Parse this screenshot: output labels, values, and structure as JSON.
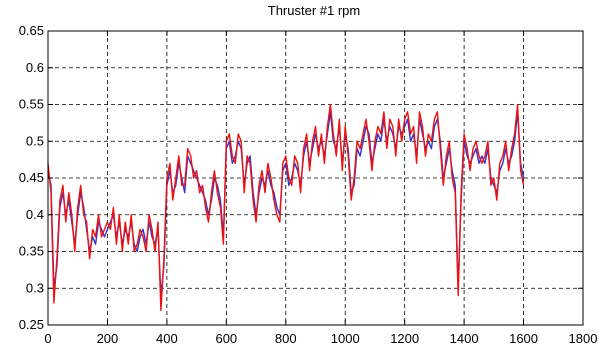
{
  "chart_data": {
    "type": "line",
    "title": "Thruster #1 rpm",
    "xlabel": "",
    "ylabel": "",
    "xlim": [
      0,
      1800
    ],
    "ylim": [
      0.25,
      0.65
    ],
    "x_ticks": [
      0,
      200,
      400,
      600,
      800,
      1000,
      1200,
      1400,
      1600,
      1800
    ],
    "y_ticks": [
      0.25,
      0.3,
      0.35,
      0.4,
      0.45,
      0.5,
      0.55,
      0.6,
      0.65
    ],
    "x_tick_labels": [
      "0",
      "200",
      "400",
      "600",
      "800",
      "1000",
      "1200",
      "1400",
      "1600",
      "1800"
    ],
    "y_tick_labels": [
      "0.25",
      "0.3",
      "0.35",
      "0.4",
      "0.45",
      "0.5",
      "0.55",
      "0.6",
      "0.65"
    ],
    "grid": true,
    "grid_style": "dashed",
    "series": [
      {
        "color": "#3333cc",
        "x": [
          0,
          10,
          20,
          30,
          40,
          50,
          60,
          70,
          80,
          90,
          100,
          110,
          120,
          130,
          140,
          150,
          160,
          170,
          180,
          190,
          200,
          210,
          220,
          230,
          240,
          250,
          260,
          270,
          280,
          290,
          300,
          310,
          320,
          330,
          340,
          350,
          360,
          370,
          380,
          390,
          400,
          410,
          420,
          430,
          440,
          450,
          460,
          470,
          480,
          490,
          500,
          510,
          520,
          530,
          540,
          550,
          560,
          570,
          580,
          590,
          600,
          610,
          620,
          630,
          640,
          650,
          660,
          670,
          680,
          690,
          700,
          710,
          720,
          730,
          740,
          750,
          760,
          770,
          780,
          790,
          800,
          810,
          820,
          830,
          840,
          850,
          860,
          870,
          880,
          890,
          900,
          910,
          920,
          930,
          940,
          950,
          960,
          970,
          980,
          990,
          1000,
          1010,
          1020,
          1030,
          1040,
          1050,
          1060,
          1070,
          1080,
          1090,
          1100,
          1110,
          1120,
          1130,
          1140,
          1150,
          1160,
          1170,
          1180,
          1190,
          1200,
          1210,
          1220,
          1230,
          1240,
          1250,
          1260,
          1270,
          1280,
          1290,
          1300,
          1310,
          1320,
          1330,
          1340,
          1350,
          1360,
          1370,
          1380,
          1390,
          1400,
          1410,
          1420,
          1430,
          1440,
          1450,
          1460,
          1470,
          1480,
          1490,
          1500,
          1510,
          1520,
          1530,
          1540,
          1550,
          1560,
          1570,
          1580,
          1590,
          1600
        ],
        "y": [
          0.46,
          0.44,
          0.3,
          0.33,
          0.41,
          0.43,
          0.4,
          0.42,
          0.39,
          0.36,
          0.4,
          0.43,
          0.41,
          0.38,
          0.35,
          0.37,
          0.36,
          0.39,
          0.38,
          0.37,
          0.38,
          0.39,
          0.4,
          0.37,
          0.39,
          0.36,
          0.38,
          0.37,
          0.39,
          0.36,
          0.35,
          0.37,
          0.38,
          0.36,
          0.39,
          0.37,
          0.36,
          0.38,
          0.29,
          0.33,
          0.44,
          0.46,
          0.43,
          0.44,
          0.47,
          0.45,
          0.43,
          0.48,
          0.47,
          0.46,
          0.45,
          0.44,
          0.43,
          0.42,
          0.4,
          0.42,
          0.45,
          0.44,
          0.42,
          0.37,
          0.49,
          0.5,
          0.47,
          0.48,
          0.5,
          0.49,
          0.44,
          0.47,
          0.48,
          0.43,
          0.4,
          0.43,
          0.45,
          0.44,
          0.46,
          0.44,
          0.43,
          0.41,
          0.4,
          0.46,
          0.47,
          0.44,
          0.45,
          0.47,
          0.46,
          0.44,
          0.48,
          0.5,
          0.47,
          0.49,
          0.51,
          0.49,
          0.5,
          0.48,
          0.51,
          0.54,
          0.5,
          0.49,
          0.52,
          0.47,
          0.51,
          0.49,
          0.43,
          0.44,
          0.49,
          0.48,
          0.5,
          0.52,
          0.51,
          0.47,
          0.49,
          0.51,
          0.5,
          0.53,
          0.5,
          0.52,
          0.51,
          0.49,
          0.52,
          0.51,
          0.52,
          0.53,
          0.5,
          0.51,
          0.48,
          0.53,
          0.51,
          0.49,
          0.5,
          0.49,
          0.52,
          0.53,
          0.5,
          0.45,
          0.47,
          0.49,
          0.46,
          0.44,
          0.3,
          0.42,
          0.5,
          0.48,
          0.47,
          0.48,
          0.49,
          0.47,
          0.48,
          0.47,
          0.49,
          0.45,
          0.44,
          0.43,
          0.46,
          0.47,
          0.49,
          0.47,
          0.48,
          0.5,
          0.54,
          0.47,
          0.45
        ]
      },
      {
        "color": "#ee1111",
        "x": [
          0,
          10,
          20,
          30,
          40,
          50,
          60,
          70,
          80,
          90,
          100,
          110,
          120,
          130,
          140,
          150,
          160,
          170,
          180,
          190,
          200,
          210,
          220,
          230,
          240,
          250,
          260,
          270,
          280,
          290,
          300,
          310,
          320,
          330,
          340,
          350,
          360,
          370,
          380,
          390,
          400,
          410,
          420,
          430,
          440,
          450,
          460,
          470,
          480,
          490,
          500,
          510,
          520,
          530,
          540,
          550,
          560,
          570,
          580,
          590,
          600,
          610,
          620,
          630,
          640,
          650,
          660,
          670,
          680,
          690,
          700,
          710,
          720,
          730,
          740,
          750,
          760,
          770,
          780,
          790,
          800,
          810,
          820,
          830,
          840,
          850,
          860,
          870,
          880,
          890,
          900,
          910,
          920,
          930,
          940,
          950,
          960,
          970,
          980,
          990,
          1000,
          1010,
          1020,
          1030,
          1040,
          1050,
          1060,
          1070,
          1080,
          1090,
          1100,
          1110,
          1120,
          1130,
          1140,
          1150,
          1160,
          1170,
          1180,
          1190,
          1200,
          1210,
          1220,
          1230,
          1240,
          1250,
          1260,
          1270,
          1280,
          1290,
          1300,
          1310,
          1320,
          1330,
          1340,
          1350,
          1360,
          1370,
          1380,
          1390,
          1400,
          1410,
          1420,
          1430,
          1440,
          1450,
          1460,
          1470,
          1480,
          1490,
          1500,
          1510,
          1520,
          1530,
          1540,
          1550,
          1560,
          1570,
          1580,
          1590,
          1600
        ],
        "y": [
          0.47,
          0.43,
          0.28,
          0.34,
          0.42,
          0.44,
          0.39,
          0.43,
          0.4,
          0.35,
          0.41,
          0.44,
          0.4,
          0.39,
          0.34,
          0.38,
          0.37,
          0.4,
          0.37,
          0.38,
          0.39,
          0.38,
          0.41,
          0.36,
          0.4,
          0.35,
          0.39,
          0.36,
          0.4,
          0.35,
          0.36,
          0.38,
          0.37,
          0.35,
          0.4,
          0.38,
          0.35,
          0.39,
          0.27,
          0.34,
          0.45,
          0.47,
          0.42,
          0.45,
          0.48,
          0.44,
          0.44,
          0.49,
          0.48,
          0.45,
          0.46,
          0.43,
          0.44,
          0.41,
          0.39,
          0.43,
          0.46,
          0.43,
          0.41,
          0.36,
          0.5,
          0.51,
          0.48,
          0.47,
          0.51,
          0.5,
          0.43,
          0.48,
          0.47,
          0.42,
          0.39,
          0.44,
          0.46,
          0.43,
          0.47,
          0.45,
          0.42,
          0.4,
          0.39,
          0.47,
          0.48,
          0.45,
          0.44,
          0.48,
          0.47,
          0.43,
          0.49,
          0.51,
          0.46,
          0.5,
          0.52,
          0.48,
          0.51,
          0.47,
          0.52,
          0.55,
          0.51,
          0.48,
          0.53,
          0.46,
          0.52,
          0.48,
          0.42,
          0.45,
          0.5,
          0.49,
          0.51,
          0.53,
          0.5,
          0.46,
          0.5,
          0.52,
          0.51,
          0.54,
          0.49,
          0.53,
          0.52,
          0.48,
          0.53,
          0.5,
          0.53,
          0.54,
          0.51,
          0.52,
          0.47,
          0.54,
          0.52,
          0.48,
          0.51,
          0.5,
          0.53,
          0.54,
          0.49,
          0.44,
          0.48,
          0.5,
          0.45,
          0.43,
          0.29,
          0.43,
          0.51,
          0.49,
          0.46,
          0.49,
          0.5,
          0.48,
          0.47,
          0.48,
          0.5,
          0.44,
          0.45,
          0.42,
          0.47,
          0.48,
          0.5,
          0.46,
          0.49,
          0.51,
          0.55,
          0.46,
          0.44
        ]
      }
    ]
  }
}
